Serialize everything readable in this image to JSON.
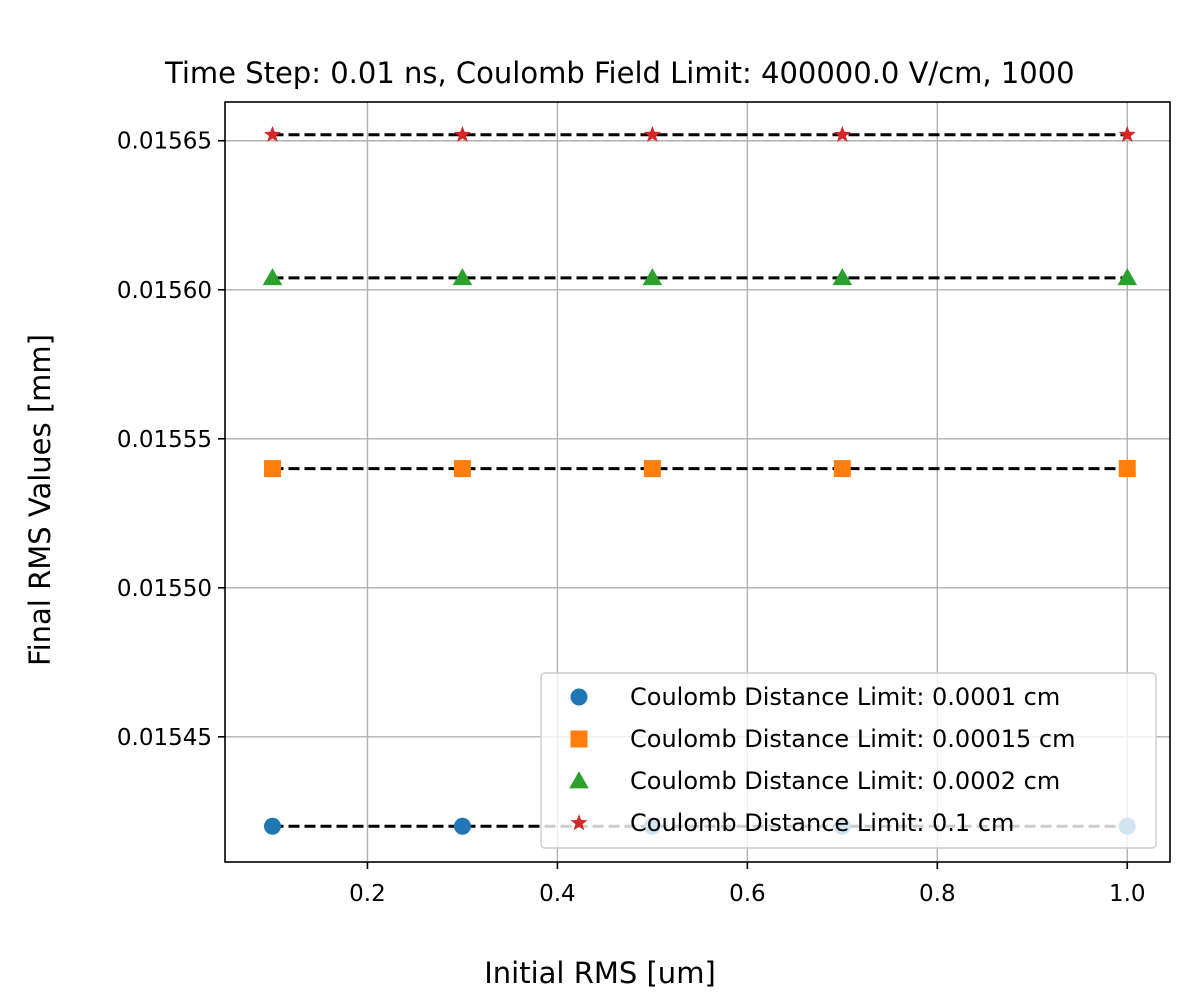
{
  "chart_data": {
    "type": "scatter",
    "title": "Time Step: 0.01 ns, Coulomb Field Limit: 400000.0 V/cm, 1000",
    "xlabel": "Initial RMS [um]",
    "ylabel": "Final RMS Values [mm]",
    "xlim": [
      0.05,
      1.045
    ],
    "ylim": [
      0.015408,
      0.015663
    ],
    "x_ticks": [
      0.2,
      0.4,
      0.6,
      0.8,
      1.0
    ],
    "x_tick_labels": [
      "0.2",
      "0.4",
      "0.6",
      "0.8",
      "1.0"
    ],
    "y_ticks": [
      0.01545,
      0.0155,
      0.01555,
      0.0156,
      0.01565
    ],
    "y_tick_labels": [
      "0.01545",
      "0.01550",
      "0.01555",
      "0.01560",
      "0.01565"
    ],
    "grid": true,
    "legend_position": "lower-right",
    "x": [
      0.1,
      0.3,
      0.5,
      0.7,
      1.0
    ],
    "series": [
      {
        "name": "Coulomb Distance Limit: 0.0001 cm",
        "marker": "circle",
        "color": "#1f77b4",
        "values": [
          0.01542,
          0.01542,
          0.01542,
          0.01542,
          0.01542
        ]
      },
      {
        "name": "Coulomb Distance Limit: 0.00015 cm",
        "marker": "square",
        "color": "#ff7f0e",
        "values": [
          0.01554,
          0.01554,
          0.01554,
          0.01554,
          0.01554
        ]
      },
      {
        "name": "Coulomb Distance Limit: 0.0002 cm",
        "marker": "triangle",
        "color": "#2ca02c",
        "values": [
          0.015604,
          0.015604,
          0.015604,
          0.015604,
          0.015604
        ]
      },
      {
        "name": "Coulomb Distance Limit: 0.1 cm",
        "marker": "star",
        "color": "#d62728",
        "values": [
          0.015652,
          0.015652,
          0.015652,
          0.015652,
          0.015652
        ]
      }
    ],
    "fit_line_color": "#000000"
  }
}
